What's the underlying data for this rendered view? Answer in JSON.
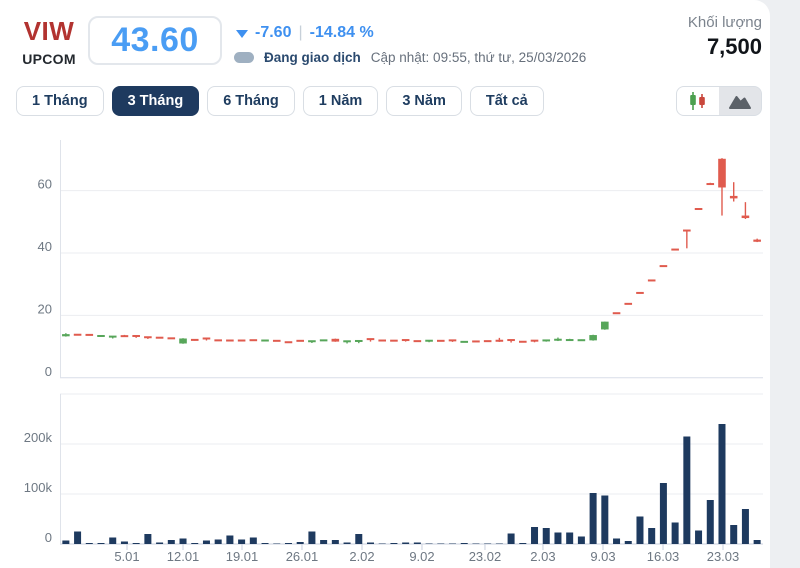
{
  "header": {
    "ticker": "VIW",
    "exchange": "UPCOM",
    "price": "43.60",
    "change": "-7.60",
    "divider": "|",
    "change_percent": "-14.84 %",
    "status": "Đang giao dịch",
    "updated": "Cập nhật: 09:55, thứ tư, 25/03/2026",
    "volume_label": "Khối lượng",
    "volume_value": "7,500"
  },
  "tabs": [
    {
      "label": "1 Tháng",
      "active": false
    },
    {
      "label": "3 Tháng",
      "active": true
    },
    {
      "label": "6 Tháng",
      "active": false
    },
    {
      "label": "1 Năm",
      "active": false
    },
    {
      "label": "3 Năm",
      "active": false
    },
    {
      "label": "Tất cả",
      "active": false
    }
  ],
  "toolbar": {
    "candlestick_view": "candlestick-chart",
    "area_view": "area-chart"
  },
  "colors": {
    "up": "#57a65a",
    "down": "#e05b4e",
    "volume_bar": "#1e3a5f",
    "grid": "#ebedf1",
    "axis_line": "#dfe3ea",
    "zero_line": "#d9dde8",
    "vol_base_line": "#c9cfdd",
    "accent_blue": "#3e90f0",
    "navy": "#1e3a5f"
  },
  "chart_data": {
    "type": "candlestick",
    "title": "VIW 3-month price and volume chart",
    "legend_position": "none",
    "grid": true,
    "price_axis": {
      "ticks": [
        0,
        20,
        40,
        60
      ],
      "max": 76
    },
    "volume_axis": {
      "ticks": [
        {
          "v": 0,
          "label": "0"
        },
        {
          "v": 100,
          "label": "100k"
        },
        {
          "v": 200,
          "label": "200k"
        },
        {
          "v": 300,
          "label": ""
        }
      ],
      "unit": "thousands of shares"
    },
    "x_ticks": [
      {
        "label": "5.01",
        "f": 0.0953
      },
      {
        "label": "12.01",
        "f": 0.175
      },
      {
        "label": "19.01",
        "f": 0.2589
      },
      {
        "label": "26.01",
        "f": 0.3442
      },
      {
        "label": "2.02",
        "f": 0.4296
      },
      {
        "label": "9.02",
        "f": 0.5149
      },
      {
        "label": "23.02",
        "f": 0.6045
      },
      {
        "label": "2.03",
        "f": 0.687
      },
      {
        "label": "9.03",
        "f": 0.7724
      },
      {
        "label": "16.03",
        "f": 0.8578
      },
      {
        "label": "23.03",
        "f": 0.9431
      }
    ],
    "candles_format": [
      "open",
      "high",
      "low",
      "close",
      "volume_k",
      "color"
    ],
    "candles": [
      [
        13.3,
        14.3,
        13.2,
        14.0,
        7,
        "g"
      ],
      [
        13.8,
        13.9,
        13.6,
        13.7,
        25,
        "r"
      ],
      [
        13.75,
        13.85,
        13.55,
        13.6,
        2,
        "r"
      ],
      [
        13.15,
        13.45,
        13.1,
        13.4,
        2,
        "g"
      ],
      [
        12.95,
        13.25,
        12.6,
        13.2,
        13,
        "g"
      ],
      [
        13.35,
        13.75,
        13.25,
        13.3,
        5,
        "r"
      ],
      [
        13.4,
        13.6,
        12.8,
        12.9,
        2,
        "r"
      ],
      [
        13.0,
        13.05,
        12.45,
        12.5,
        20,
        "r"
      ],
      [
        12.85,
        12.9,
        12.7,
        12.75,
        3,
        "r"
      ],
      [
        12.65,
        12.7,
        12.45,
        12.55,
        8,
        "r"
      ],
      [
        11.0,
        12.7,
        10.9,
        12.6,
        11,
        "g"
      ],
      [
        12.15,
        12.3,
        11.9,
        12.0,
        2,
        "r"
      ],
      [
        12.6,
        12.6,
        11.95,
        12.0,
        7,
        "r"
      ],
      [
        12.0,
        12.05,
        11.8,
        11.9,
        9,
        "r"
      ],
      [
        11.95,
        12.0,
        11.8,
        11.9,
        17,
        "r"
      ],
      [
        11.95,
        12.0,
        11.8,
        11.88,
        9,
        "r"
      ],
      [
        12.05,
        12.1,
        11.9,
        11.98,
        13,
        "r"
      ],
      [
        11.9,
        12.0,
        11.85,
        11.95,
        2,
        "g"
      ],
      [
        11.85,
        11.9,
        11.7,
        11.78,
        1,
        "r"
      ],
      [
        11.4,
        11.5,
        11.15,
        11.3,
        2,
        "r"
      ],
      [
        11.85,
        11.9,
        11.7,
        11.78,
        4,
        "r"
      ],
      [
        11.7,
        11.75,
        11.15,
        11.72,
        25,
        "g"
      ],
      [
        11.95,
        12.2,
        11.9,
        12.0,
        8,
        "g"
      ],
      [
        12.5,
        12.55,
        11.55,
        11.6,
        8,
        "r"
      ],
      [
        11.3,
        11.75,
        11.0,
        11.7,
        3,
        "g"
      ],
      [
        11.5,
        11.85,
        11.1,
        11.8,
        20,
        "g"
      ],
      [
        12.4,
        12.45,
        11.6,
        12.0,
        3,
        "r"
      ],
      [
        11.95,
        12.0,
        11.85,
        11.9,
        1,
        "r"
      ],
      [
        11.9,
        11.95,
        11.78,
        11.85,
        2,
        "r"
      ],
      [
        12.1,
        12.2,
        11.6,
        11.72,
        3,
        "r"
      ],
      [
        11.75,
        11.8,
        11.6,
        11.68,
        3,
        "r"
      ],
      [
        11.42,
        11.9,
        11.4,
        11.88,
        1,
        "g"
      ],
      [
        11.85,
        11.9,
        11.75,
        11.8,
        1,
        "r"
      ],
      [
        12.0,
        12.05,
        11.5,
        11.55,
        1,
        "r"
      ],
      [
        11.45,
        11.58,
        11.4,
        11.52,
        2,
        "g"
      ],
      [
        11.65,
        11.7,
        11.55,
        11.6,
        1,
        "r"
      ],
      [
        11.75,
        11.8,
        11.65,
        11.7,
        1,
        "r"
      ],
      [
        12.2,
        12.8,
        11.5,
        11.55,
        1,
        "r"
      ],
      [
        12.1,
        12.15,
        11.3,
        11.6,
        21,
        "r"
      ],
      [
        11.55,
        11.6,
        11.45,
        11.5,
        2,
        "r"
      ],
      [
        11.9,
        11.95,
        11.38,
        11.42,
        34,
        "r"
      ],
      [
        11.6,
        12.0,
        11.58,
        11.98,
        32,
        "g"
      ],
      [
        11.8,
        12.9,
        11.78,
        12.2,
        23,
        "g"
      ],
      [
        12.0,
        12.5,
        11.98,
        12.1,
        23,
        "g"
      ],
      [
        12.0,
        12.3,
        11.95,
        12.05,
        15,
        "g"
      ],
      [
        12.0,
        13.8,
        11.9,
        13.7,
        102,
        "g"
      ],
      [
        15.5,
        18.0,
        15.4,
        18.0,
        97,
        "g"
      ],
      [
        20.7,
        20.8,
        20.5,
        20.6,
        11,
        "r"
      ],
      [
        23.7,
        23.8,
        23.5,
        23.6,
        6,
        "r"
      ],
      [
        27.2,
        27.3,
        27.0,
        27.1,
        55,
        "r"
      ],
      [
        31.2,
        31.3,
        31.0,
        31.1,
        32,
        "r"
      ],
      [
        35.8,
        35.9,
        35.6,
        35.7,
        122,
        "r"
      ],
      [
        41.1,
        41.2,
        40.9,
        41.0,
        43,
        "r"
      ],
      [
        47.2,
        47.3,
        41.5,
        47.0,
        215,
        "r"
      ],
      [
        54.1,
        54.2,
        53.9,
        54.0,
        27,
        "r"
      ],
      [
        62.1,
        62.5,
        61.9,
        62.0,
        88,
        "r"
      ],
      [
        70.2,
        70.4,
        52.0,
        61.0,
        240,
        "r"
      ],
      [
        58.3,
        62.7,
        56.5,
        57.5,
        38,
        "r"
      ],
      [
        52.0,
        56.3,
        50.9,
        51.2,
        70,
        "r"
      ],
      [
        44.3,
        44.6,
        43.5,
        43.6,
        8,
        "r"
      ]
    ]
  }
}
